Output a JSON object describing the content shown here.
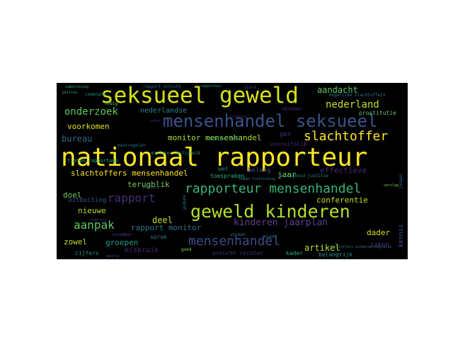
{
  "words": [
    {
      "text": "nationaal rapporteur",
      "color": "#fde725"
    },
    {
      "text": "seksueel geweld",
      "color": "#d8e219"
    },
    {
      "text": "mensenhandel seksueel",
      "color": "#3b528b"
    },
    {
      "text": "geweld kinderen",
      "color": "#b5de2b"
    },
    {
      "text": "rapporteur mensenhandel",
      "color": "#35b779"
    },
    {
      "text": "mensenhandel",
      "color": "#3e4a89"
    },
    {
      "text": "slachtoffer",
      "color": "#fde725"
    },
    {
      "text": "onderzoek",
      "color": "#5ec962"
    },
    {
      "text": "nederland",
      "color": "#c2df23"
    },
    {
      "text": "aanpak",
      "color": "#5ec962"
    },
    {
      "text": "rapport",
      "color": "#472d7b"
    },
    {
      "text": "kinderen jaarplan",
      "color": "#5b3c8f"
    },
    {
      "text": "monitor mensenhandel",
      "color": "#addc30"
    },
    {
      "text": "slachtoffers mensenhandel",
      "color": "#fde725"
    },
    {
      "text": "aandacht",
      "color": "#5ec962"
    },
    {
      "text": "voorkomen",
      "color": "#e2e418"
    },
    {
      "text": "bureau",
      "color": "#31688e"
    },
    {
      "text": "nederlandse",
      "color": "#26828e"
    },
    {
      "text": "conferentie",
      "color": "#bddf26"
    },
    {
      "text": "artikel",
      "color": "#b5de2b"
    },
    {
      "text": "deel",
      "color": "#bddf26"
    },
    {
      "text": "nieuwe",
      "color": "#b5de2b"
    },
    {
      "text": "doel",
      "color": "#6ccd5a"
    },
    {
      "text": "dader",
      "color": "#d8e219"
    },
    {
      "text": "zowel",
      "color": "#c2df23"
    },
    {
      "text": "groepen",
      "color": "#1f9e89"
    },
    {
      "text": "misbruik",
      "color": "#482878"
    },
    {
      "text": "rapport monitor",
      "color": "#2c728e"
    },
    {
      "text": "terugblik",
      "color": "#7ad151"
    },
    {
      "text": "uitbuiting",
      "color": "#3b528b"
    },
    {
      "text": "jaar",
      "color": "#7ad151"
    },
    {
      "text": "effectieve",
      "color": "#482878"
    },
    {
      "text": "belang",
      "color": "#404688"
    },
    {
      "text": "gen",
      "color": "#472d7b"
    },
    {
      "text": "wet",
      "color": "#25848e"
    },
    {
      "text": "ontucht rechter",
      "color": "#46307e"
    },
    {
      "text": "kader",
      "color": "#29af7f"
    },
    {
      "text": "belangrijk",
      "color": "#21918c"
    },
    {
      "text": "zaken",
      "color": "#472d7b"
    },
    {
      "text": "kennis",
      "color": "#3b528b"
    },
    {
      "text": "cijfers",
      "color": "#21918c"
    },
    {
      "text": "tiende rapportage",
      "color": "#22a884"
    },
    {
      "text": "rechter deel",
      "color": "#1f9e89"
    },
    {
      "text": "minister veiligheid",
      "color": "#1f9e89"
    },
    {
      "text": "sprak",
      "color": "#2a788e"
    },
    {
      "text": "november",
      "color": "#443983"
    },
    {
      "text": "maatregelen",
      "color": "#2c728e"
    },
    {
      "text": "toespraken",
      "color": "#2fb47c"
    },
    {
      "text": "prostitutie",
      "color": "#5ec962"
    },
    {
      "text": "oktober",
      "color": "#482878"
    },
    {
      "text": "maakt",
      "color": "#31688e"
    },
    {
      "text": "vormen",
      "color": "#2c728e"
    },
    {
      "text": "goed",
      "color": "#7ad151"
    },
    {
      "text": "stand",
      "color": "#443983"
    },
    {
      "text": "nodig",
      "color": "#5ec962"
    },
    {
      "text": "rapport ontucht",
      "color": "#31688e"
    },
    {
      "text": "mogelijke slachtoffers",
      "color": "#2a788e"
    },
    {
      "text": "slachtoffers kinderpornografie",
      "color": "#2c728e"
    },
    {
      "text": "human trafficking",
      "color": "#25848e"
    },
    {
      "text": "comensha",
      "color": "#21918c"
    },
    {
      "text": "beleid",
      "color": "#3b528b"
    },
    {
      "text": "regering",
      "color": "#472d7b"
    },
    {
      "text": "jongen",
      "color": "#31688e"
    },
    {
      "text": "samenleving",
      "color": "#22a884"
    },
    {
      "text": "politie",
      "color": "#2fb47c"
    },
    {
      "text": "gevolg",
      "color": "#3e4a89"
    },
    {
      "text": "onder",
      "color": "#482878"
    },
    {
      "text": "rapporteur",
      "color": "#1f9e89"
    },
    {
      "text": "vooruitblik",
      "color": "#482878"
    },
    {
      "text": "verslag",
      "color": "#7ad151"
    },
    {
      "text": "veiligheid justitie",
      "color": "#21918c"
    },
    {
      "text": "kinderen",
      "color": "#472d7b"
    }
  ]
}
